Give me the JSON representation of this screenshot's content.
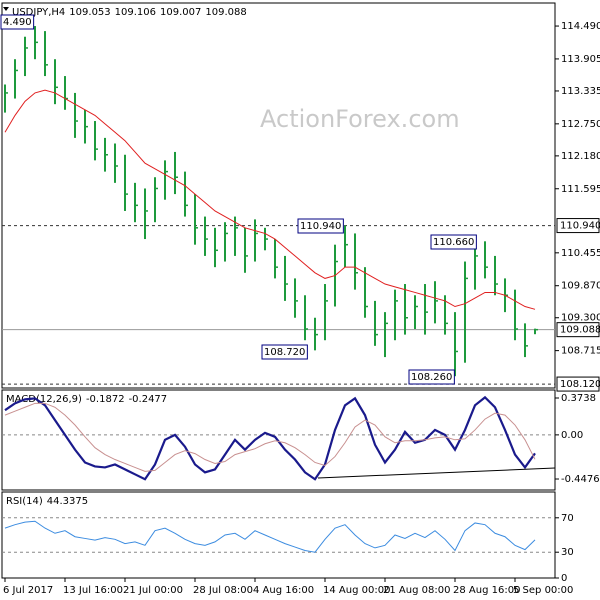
{
  "chart_data": [
    {
      "type": "hlc",
      "title": "USDJPY,H4",
      "last_bar": [
        109.053,
        109.106,
        109.007,
        109.088
      ],
      "watermark": "ActionForex.com",
      "color": "#1d9a3c",
      "ylim": [
        108.05,
        114.9
      ],
      "yticks": [
        {
          "value": 114.49,
          "label": "114.490"
        },
        113.905,
        113.335,
        {
          "value": 112.75,
          "label": "112.750"
        },
        {
          "value": 112.18,
          "label": "112.180"
        },
        111.595,
        110.455,
        {
          "value": 109.87,
          "label": "109.870"
        },
        {
          "value": 109.3,
          "label": "109.300"
        },
        108.715
      ],
      "levels": [
        {
          "value": 110.94,
          "label": "110.940",
          "line": "dashed"
        },
        {
          "value": 109.088,
          "label": "109.088",
          "line": "solid"
        },
        {
          "value": 108.12,
          "label": "108.120",
          "line": "dashed"
        }
      ],
      "annotations": [
        "4.490",
        "110.940",
        "110.660",
        "108.720",
        "108.260"
      ],
      "high": [
        113.45,
        113.9,
        114.3,
        114.49,
        114.4,
        113.9,
        113.6,
        113.3,
        113.0,
        112.8,
        112.5,
        112.4,
        112.2,
        111.7,
        111.6,
        111.8,
        112.1,
        112.25,
        111.9,
        111.5,
        111.1,
        110.9,
        111.0,
        111.1,
        110.9,
        111.05,
        110.9,
        110.7,
        110.4,
        110.0,
        109.7,
        109.3,
        109.9,
        110.6,
        110.94,
        110.8,
        110.2,
        109.6,
        109.4,
        109.8,
        109.9,
        109.7,
        109.9,
        109.95,
        109.7,
        109.4,
        110.3,
        110.6,
        110.66,
        110.4,
        110.0,
        109.8,
        109.2,
        109.106
      ],
      "low": [
        112.95,
        113.2,
        113.6,
        113.9,
        113.6,
        113.1,
        113.0,
        112.5,
        112.4,
        112.1,
        111.9,
        111.7,
        111.2,
        111.0,
        110.7,
        111.0,
        111.4,
        111.5,
        111.1,
        110.6,
        110.4,
        110.2,
        110.3,
        110.4,
        110.1,
        110.3,
        110.5,
        110.0,
        109.6,
        109.3,
        108.9,
        108.72,
        108.9,
        109.5,
        110.2,
        109.8,
        109.3,
        108.8,
        108.6,
        108.9,
        109.0,
        109.1,
        109.0,
        109.2,
        109.0,
        108.26,
        108.5,
        109.8,
        110.0,
        109.7,
        109.4,
        108.9,
        108.6,
        109.007
      ],
      "close": [
        113.3,
        113.7,
        114.1,
        114.2,
        113.8,
        113.4,
        113.2,
        112.8,
        112.7,
        112.3,
        112.2,
        112.0,
        111.5,
        111.3,
        111.2,
        111.6,
        111.9,
        111.8,
        111.3,
        110.9,
        110.7,
        110.5,
        110.8,
        110.9,
        110.4,
        110.8,
        110.7,
        110.2,
        109.9,
        109.6,
        109.1,
        109.0,
        109.6,
        110.3,
        110.6,
        110.1,
        109.5,
        109.0,
        109.2,
        109.6,
        109.3,
        109.5,
        109.4,
        109.6,
        109.2,
        108.7,
        110.0,
        110.4,
        110.2,
        109.9,
        109.7,
        109.1,
        108.8,
        109.088
      ],
      "ma": {
        "color": "#e02020",
        "values": [
          112.6,
          112.9,
          113.15,
          113.3,
          113.35,
          113.3,
          113.2,
          113.1,
          113.0,
          112.9,
          112.75,
          112.6,
          112.45,
          112.25,
          112.05,
          111.95,
          111.85,
          111.75,
          111.65,
          111.5,
          111.35,
          111.2,
          111.1,
          111.0,
          110.9,
          110.85,
          110.8,
          110.7,
          110.55,
          110.4,
          110.25,
          110.1,
          110.0,
          110.05,
          110.2,
          110.2,
          110.1,
          110.0,
          109.9,
          109.85,
          109.8,
          109.75,
          109.7,
          109.65,
          109.6,
          109.5,
          109.55,
          109.65,
          109.75,
          109.75,
          109.7,
          109.6,
          109.5,
          109.45
        ]
      }
    },
    {
      "type": "line",
      "title": "MACD(12,26,9)",
      "title_values": [
        -0.1872,
        -0.2477
      ],
      "ylim": [
        -0.559,
        0.455
      ],
      "yticks": [
        0.3738,
        {
          "value": 0,
          "label": "0.00"
        },
        -0.4476
      ],
      "dashed_lines": [
        0
      ],
      "series": [
        {
          "color": "#1a1a8c",
          "width": 2.2,
          "values": [
            0.25,
            0.32,
            0.36,
            0.37,
            0.3,
            0.15,
            0.0,
            -0.15,
            -0.28,
            -0.32,
            -0.33,
            -0.3,
            -0.35,
            -0.4,
            -0.45,
            -0.3,
            -0.05,
            0.0,
            -0.12,
            -0.3,
            -0.38,
            -0.35,
            -0.2,
            -0.05,
            -0.15,
            -0.05,
            0.02,
            -0.02,
            -0.15,
            -0.25,
            -0.38,
            -0.45,
            -0.3,
            0.05,
            0.3,
            0.37,
            0.2,
            -0.1,
            -0.28,
            -0.15,
            0.03,
            -0.08,
            -0.05,
            0.05,
            0.0,
            -0.15,
            0.05,
            0.3,
            0.38,
            0.28,
            0.05,
            -0.2,
            -0.33,
            -0.1872
          ]
        },
        {
          "color": "#c89090",
          "width": 1,
          "values": [
            0.2,
            0.24,
            0.28,
            0.32,
            0.32,
            0.28,
            0.2,
            0.1,
            -0.02,
            -0.13,
            -0.2,
            -0.25,
            -0.29,
            -0.33,
            -0.37,
            -0.36,
            -0.28,
            -0.2,
            -0.16,
            -0.19,
            -0.25,
            -0.29,
            -0.27,
            -0.2,
            -0.17,
            -0.14,
            -0.09,
            -0.06,
            -0.08,
            -0.13,
            -0.2,
            -0.28,
            -0.31,
            -0.22,
            -0.08,
            0.08,
            0.15,
            0.1,
            -0.02,
            -0.08,
            -0.06,
            -0.06,
            -0.05,
            -0.03,
            -0.02,
            -0.05,
            -0.04,
            0.05,
            0.16,
            0.22,
            0.2,
            0.1,
            -0.05,
            -0.2477
          ]
        }
      ]
    },
    {
      "type": "line",
      "title": "RSI(14)",
      "title_values": [
        44.3375
      ],
      "ylim": [
        0,
        100
      ],
      "yticks": [
        70,
        30,
        0
      ],
      "dashed_lines": [
        70,
        30
      ],
      "categories": [
        "6 Jul 2017",
        null,
        null,
        null,
        null,
        null,
        "13 Jul 16:00",
        null,
        null,
        null,
        null,
        null,
        "21 Jul 00:00",
        null,
        null,
        null,
        null,
        null,
        null,
        "28 Jul 08:00",
        null,
        null,
        null,
        null,
        null,
        "4 Aug 16:00",
        null,
        null,
        null,
        null,
        null,
        null,
        "14 Aug 00:00",
        null,
        null,
        null,
        null,
        null,
        "21 Aug 08:00",
        null,
        null,
        null,
        null,
        null,
        null,
        "28 Aug 16:00",
        null,
        null,
        null,
        null,
        null,
        "5 Sep 00:00",
        null,
        null
      ],
      "series": [
        {
          "color": "#3c8ce0",
          "width": 1,
          "values": [
            58,
            62,
            65,
            66,
            58,
            52,
            55,
            48,
            46,
            44,
            47,
            45,
            40,
            42,
            38,
            55,
            58,
            52,
            45,
            40,
            38,
            42,
            50,
            52,
            45,
            55,
            50,
            45,
            40,
            36,
            32,
            30,
            45,
            58,
            62,
            50,
            40,
            35,
            38,
            50,
            46,
            52,
            47,
            55,
            45,
            32,
            55,
            64,
            62,
            52,
            48,
            38,
            33,
            44.3375
          ]
        }
      ]
    }
  ]
}
